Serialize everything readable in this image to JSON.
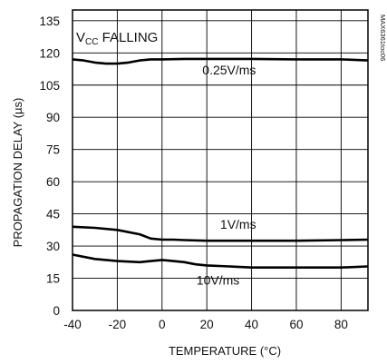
{
  "chart_data": {
    "type": "line",
    "title": "",
    "xlabel": "TEMPERATURE (°C)",
    "ylabel": "PROPAGATION DELAY (µs)",
    "xlim": [
      -40,
      92
    ],
    "ylim": [
      0,
      140
    ],
    "xticks": [
      -40,
      -20,
      0,
      20,
      40,
      60,
      80
    ],
    "yticks": [
      0,
      15,
      30,
      45,
      60,
      75,
      90,
      105,
      120,
      135
    ],
    "grid": true,
    "annotation": {
      "prefix": "V",
      "subscript": "CC",
      "suffix": " FALLING"
    },
    "code_label": "MAX6361toc06",
    "series": [
      {
        "name": "0.25V/ms",
        "x": [
          -40,
          -35,
          -30,
          -25,
          -20,
          -15,
          -10,
          -5,
          0,
          10,
          20,
          40,
          60,
          80,
          92
        ],
        "y": [
          117,
          116.5,
          115.5,
          115,
          115,
          115.5,
          116.5,
          117,
          117,
          117.2,
          117.2,
          117.2,
          117,
          117,
          116.5
        ]
      },
      {
        "name": "1V/ms",
        "x": [
          -40,
          -30,
          -20,
          -10,
          -5,
          0,
          5,
          10,
          20,
          40,
          60,
          80,
          92
        ],
        "y": [
          39,
          38.5,
          37.5,
          35.5,
          33.5,
          33,
          33,
          32.8,
          32.5,
          32.5,
          32.5,
          32.8,
          33
        ]
      },
      {
        "name": "10V/ms",
        "x": [
          -40,
          -30,
          -20,
          -10,
          -5,
          0,
          5,
          10,
          15,
          20,
          30,
          40,
          60,
          80,
          92
        ],
        "y": [
          26,
          24,
          23,
          22.5,
          23,
          23.5,
          23,
          22.5,
          21.5,
          21,
          20.5,
          20,
          20,
          20,
          20.5
        ]
      }
    ],
    "series_label_pos": [
      {
        "x": 30,
        "y": 110
      },
      {
        "x": 34,
        "y": 38
      },
      {
        "x": 25,
        "y": 12
      }
    ]
  }
}
